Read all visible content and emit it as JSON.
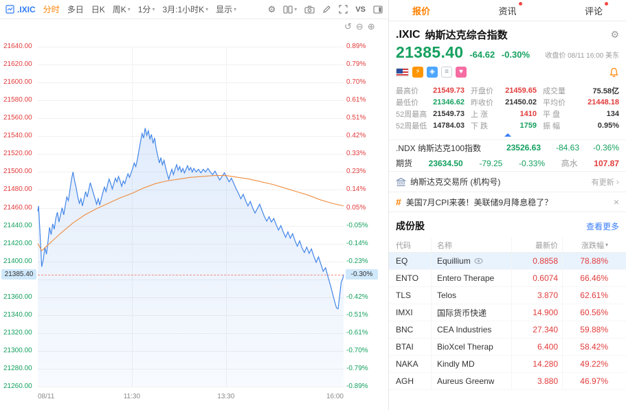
{
  "colors": {
    "up": "#e23b3b",
    "down": "#14a05e",
    "accent": "#ff8000",
    "link": "#3c7ff7",
    "line": "#4285e8",
    "avg_line": "#f08c3d"
  },
  "icons": {
    "caret": "▾",
    "gear": "⚙",
    "undo": "↺",
    "zoom_out": "⊖",
    "zoom_in": "⊕",
    "close": "×",
    "chevron_right": "›",
    "hash": "#",
    "heart": "♥",
    "lightning": "⚡",
    "tag": "◈",
    "list": "≡"
  },
  "toolbar": {
    "symbol_tab": ".IXIC",
    "items": [
      {
        "label": "分时",
        "active": true
      },
      {
        "label": "多日"
      },
      {
        "label": "日K"
      },
      {
        "label": "周K",
        "caret": true
      },
      {
        "label": "1分",
        "caret": true
      },
      {
        "label": "3月:1小时K",
        "caret": true
      },
      {
        "label": "显示",
        "caret": true
      }
    ],
    "vs_label": "VS"
  },
  "chart_data": {
    "type": "line",
    "symbol": ".IXIC",
    "title": "纳斯达克综合指数分时图",
    "session_date": "08/11",
    "prev_close": 21450.02,
    "current_price": 21385.4,
    "current_price_label": "21385.40",
    "current_percent_label": "-0.30%",
    "x_axis": {
      "minutes_total": 390,
      "labels": [
        {
          "label": "08/11",
          "t": 0,
          "align": "left"
        },
        {
          "label": "11:30",
          "t": 120,
          "align": "center"
        },
        {
          "label": "13:30",
          "t": 240,
          "align": "center"
        },
        {
          "label": "16:00",
          "t": 390,
          "align": "right"
        }
      ]
    },
    "vgrid_minutes": [
      120,
      240
    ],
    "ticks": [
      {
        "price": 21640,
        "left": "21640.00",
        "right": "0.89%",
        "dir": "up"
      },
      {
        "price": 21620,
        "left": "21620.00",
        "right": "0.79%",
        "dir": "up"
      },
      {
        "price": 21600,
        "left": "21600.00",
        "right": "0.70%",
        "dir": "up"
      },
      {
        "price": 21580,
        "left": "21580.00",
        "right": "0.61%",
        "dir": "up"
      },
      {
        "price": 21560,
        "left": "21560.00",
        "right": "0.51%",
        "dir": "up"
      },
      {
        "price": 21540,
        "left": "21540.00",
        "right": "0.42%",
        "dir": "up"
      },
      {
        "price": 21520,
        "left": "21520.00",
        "right": "0.33%",
        "dir": "up"
      },
      {
        "price": 21500,
        "left": "21500.00",
        "right": "0.23%",
        "dir": "up"
      },
      {
        "price": 21480,
        "left": "21480.00",
        "right": "0.14%",
        "dir": "up"
      },
      {
        "price": 21460,
        "left": "21460.00",
        "right": "0.05%",
        "dir": "up"
      },
      {
        "price": 21440,
        "left": "21440.00",
        "right": "-0.05%",
        "dir": "down"
      },
      {
        "price": 21420,
        "left": "21420.00",
        "right": "-0.14%",
        "dir": "down"
      },
      {
        "price": 21400,
        "left": "21400.00",
        "right": "-0.23%",
        "dir": "down"
      },
      {
        "price": 21380,
        "left": "",
        "right": "",
        "dir": "down"
      },
      {
        "price": 21360,
        "left": "21360.00",
        "right": "-0.42%",
        "dir": "down"
      },
      {
        "price": 21340,
        "left": "21340.00",
        "right": "-0.51%",
        "dir": "down"
      },
      {
        "price": 21320,
        "left": "21320.00",
        "right": "-0.61%",
        "dir": "down"
      },
      {
        "price": 21300,
        "left": "21300.00",
        "right": "-0.70%",
        "dir": "down"
      },
      {
        "price": 21280,
        "left": "21280.00",
        "right": "-0.79%",
        "dir": "down"
      },
      {
        "price": 21260,
        "left": "21260.00",
        "right": "-0.89%",
        "dir": "down"
      }
    ],
    "series": [
      {
        "name": "price",
        "color": "#4285e8",
        "points": [
          [
            0,
            21456
          ],
          [
            1,
            21462
          ],
          [
            2,
            21445
          ],
          [
            4,
            21412
          ],
          [
            5,
            21394
          ],
          [
            7,
            21402
          ],
          [
            9,
            21416
          ],
          [
            11,
            21408
          ],
          [
            13,
            21422
          ],
          [
            15,
            21438
          ],
          [
            17,
            21430
          ],
          [
            19,
            21442
          ],
          [
            21,
            21436
          ],
          [
            23,
            21448
          ],
          [
            25,
            21455
          ],
          [
            27,
            21444
          ],
          [
            29,
            21452
          ],
          [
            31,
            21460
          ],
          [
            33,
            21452
          ],
          [
            35,
            21462
          ],
          [
            37,
            21472
          ],
          [
            39,
            21468
          ],
          [
            41,
            21480
          ],
          [
            43,
            21492
          ],
          [
            45,
            21500
          ],
          [
            47,
            21490
          ],
          [
            49,
            21482
          ],
          [
            51,
            21472
          ],
          [
            53,
            21465
          ],
          [
            55,
            21470
          ],
          [
            57,
            21462
          ],
          [
            59,
            21470
          ],
          [
            61,
            21478
          ],
          [
            63,
            21472
          ],
          [
            65,
            21480
          ],
          [
            67,
            21488
          ],
          [
            69,
            21482
          ],
          [
            71,
            21476
          ],
          [
            73,
            21470
          ],
          [
            75,
            21464
          ],
          [
            77,
            21470
          ],
          [
            79,
            21463
          ],
          [
            81,
            21470
          ],
          [
            83,
            21477
          ],
          [
            85,
            21483
          ],
          [
            87,
            21478
          ],
          [
            89,
            21486
          ],
          [
            91,
            21492
          ],
          [
            93,
            21487
          ],
          [
            95,
            21481
          ],
          [
            97,
            21487
          ],
          [
            99,
            21493
          ],
          [
            101,
            21489
          ],
          [
            103,
            21495
          ],
          [
            105,
            21490
          ],
          [
            107,
            21484
          ],
          [
            109,
            21490
          ],
          [
            111,
            21487
          ],
          [
            113,
            21493
          ],
          [
            115,
            21498
          ],
          [
            117,
            21494
          ],
          [
            119,
            21499
          ],
          [
            121,
            21504
          ],
          [
            123,
            21510
          ],
          [
            125,
            21506
          ],
          [
            127,
            21514
          ],
          [
            129,
            21524
          ],
          [
            131,
            21534
          ],
          [
            133,
            21543
          ],
          [
            135,
            21538
          ],
          [
            137,
            21549
          ],
          [
            139,
            21541
          ],
          [
            141,
            21546
          ],
          [
            143,
            21537
          ],
          [
            145,
            21542
          ],
          [
            147,
            21532
          ],
          [
            149,
            21538
          ],
          [
            151,
            21526
          ],
          [
            153,
            21518
          ],
          [
            155,
            21510
          ],
          [
            157,
            21516
          ],
          [
            159,
            21508
          ],
          [
            161,
            21513
          ],
          [
            163,
            21505
          ],
          [
            165,
            21498
          ],
          [
            167,
            21492
          ],
          [
            169,
            21498
          ],
          [
            171,
            21503
          ],
          [
            173,
            21497
          ],
          [
            175,
            21503
          ],
          [
            177,
            21508
          ],
          [
            179,
            21502
          ],
          [
            181,
            21506
          ],
          [
            183,
            21500
          ],
          [
            185,
            21504
          ],
          [
            187,
            21499
          ],
          [
            189,
            21503
          ],
          [
            191,
            21507
          ],
          [
            193,
            21502
          ],
          [
            195,
            21505
          ],
          [
            197,
            21500
          ],
          [
            199,
            21504
          ],
          [
            202,
            21500
          ],
          [
            205,
            21503
          ],
          [
            208,
            21499
          ],
          [
            211,
            21503
          ],
          [
            214,
            21500
          ],
          [
            217,
            21504
          ],
          [
            220,
            21500
          ],
          [
            223,
            21497
          ],
          [
            226,
            21501
          ],
          [
            229,
            21496
          ],
          [
            232,
            21491
          ],
          [
            235,
            21495
          ],
          [
            238,
            21499
          ],
          [
            241,
            21494
          ],
          [
            244,
            21489
          ],
          [
            247,
            21493
          ],
          [
            250,
            21487
          ],
          [
            253,
            21481
          ],
          [
            256,
            21476
          ],
          [
            259,
            21470
          ],
          [
            262,
            21475
          ],
          [
            265,
            21468
          ],
          [
            268,
            21462
          ],
          [
            271,
            21467
          ],
          [
            274,
            21460
          ],
          [
            277,
            21454
          ],
          [
            280,
            21459
          ],
          [
            283,
            21464
          ],
          [
            286,
            21457
          ],
          [
            289,
            21450
          ],
          [
            292,
            21445
          ],
          [
            295,
            21450
          ],
          [
            298,
            21444
          ],
          [
            301,
            21448
          ],
          [
            304,
            21441
          ],
          [
            307,
            21435
          ],
          [
            310,
            21440
          ],
          [
            313,
            21433
          ],
          [
            316,
            21427
          ],
          [
            319,
            21433
          ],
          [
            322,
            21426
          ],
          [
            325,
            21431
          ],
          [
            328,
            21423
          ],
          [
            331,
            21417
          ],
          [
            334,
            21423
          ],
          [
            337,
            21415
          ],
          [
            340,
            21410
          ],
          [
            343,
            21416
          ],
          [
            346,
            21409
          ],
          [
            349,
            21414
          ],
          [
            352,
            21406
          ],
          [
            355,
            21399
          ],
          [
            358,
            21405
          ],
          [
            361,
            21397
          ],
          [
            364,
            21389
          ],
          [
            367,
            21393
          ],
          [
            370,
            21383
          ],
          [
            373,
            21374
          ],
          [
            376,
            21364
          ],
          [
            379,
            21354
          ],
          [
            381,
            21348
          ],
          [
            383,
            21347
          ],
          [
            385,
            21362
          ],
          [
            387,
            21377
          ],
          [
            389,
            21381
          ],
          [
            390,
            21385.4
          ]
        ]
      },
      {
        "name": "avg_price",
        "color": "#f08c3d",
        "points": [
          [
            0,
            21420
          ],
          [
            5,
            21412
          ],
          [
            10,
            21416
          ],
          [
            20,
            21424
          ],
          [
            30,
            21432
          ],
          [
            45,
            21443
          ],
          [
            60,
            21452
          ],
          [
            75,
            21459
          ],
          [
            90,
            21465
          ],
          [
            105,
            21471
          ],
          [
            120,
            21476
          ],
          [
            135,
            21482
          ],
          [
            150,
            21487
          ],
          [
            165,
            21490
          ],
          [
            180,
            21492
          ],
          [
            195,
            21494
          ],
          [
            210,
            21495
          ],
          [
            225,
            21496
          ],
          [
            240,
            21496
          ],
          [
            255,
            21494
          ],
          [
            270,
            21492
          ],
          [
            285,
            21489
          ],
          [
            300,
            21486
          ],
          [
            315,
            21482
          ],
          [
            330,
            21478
          ],
          [
            345,
            21474
          ],
          [
            360,
            21469
          ],
          [
            375,
            21465
          ],
          [
            390,
            21462
          ]
        ]
      }
    ]
  },
  "panel": {
    "tabs": [
      {
        "label": "报价",
        "active": true
      },
      {
        "label": "资讯",
        "dot": true
      },
      {
        "label": "评论",
        "dot": true
      }
    ],
    "quote": {
      "symbol": ".IXIC",
      "name": "纳斯达克综合指数",
      "price": "21385.40",
      "change": "-64.62",
      "change_percent": "-0.30%",
      "status": {
        "label": "收盘价",
        "time": "08/11 16:00",
        "tz": "美东"
      }
    },
    "stats": [
      {
        "label": "最高价",
        "value": "21549.73",
        "cls": "up"
      },
      {
        "label": "开盘价",
        "value": "21459.65",
        "cls": "up"
      },
      {
        "label": "成交量",
        "value": "75.58亿",
        "cls": ""
      },
      {
        "label": "最低价",
        "value": "21346.62",
        "cls": "down"
      },
      {
        "label": "昨收价",
        "value": "21450.02",
        "cls": ""
      },
      {
        "label": "平均价",
        "value": "21448.18",
        "cls": "up"
      },
      {
        "label": "52周最高",
        "value": "21549.73",
        "cls": ""
      },
      {
        "label": "上 涨",
        "value": "1410",
        "cls": "up"
      },
      {
        "label": "平 盘",
        "value": "134",
        "cls": ""
      },
      {
        "label": "52周最低",
        "value": "14784.03",
        "cls": ""
      },
      {
        "label": "下 跌",
        "value": "1759",
        "cls": "down"
      },
      {
        "label": "振 幅",
        "value": "0.95%",
        "cls": ""
      }
    ],
    "ndx": {
      "code": ".NDX",
      "name": "纳斯达克100指数",
      "price": "23526.63",
      "change": "-84.63",
      "pct": "-0.36%"
    },
    "futures": {
      "label": "期货",
      "price": "23634.50",
      "change": "-79.25",
      "pct": "-0.33%",
      "premium_label": "高水",
      "premium_value": "107.87"
    },
    "exchange": {
      "name": "纳斯达克交易所 (机构号)",
      "update_label": "有更新"
    },
    "announcement": {
      "text": "美国7月CPI来袭！美联储9月降息稳了？"
    },
    "components": {
      "title": "成份股",
      "more_label": "查看更多",
      "headers": {
        "code": "代码",
        "name": "名称",
        "price": "最新价",
        "pct": "涨跌幅"
      },
      "rows": [
        {
          "code": "EQ",
          "name": "Equillium",
          "price": "0.8858",
          "pct": "78.88%",
          "highlight": true,
          "eye": true
        },
        {
          "code": "ENTO",
          "name": "Entero Therape",
          "price": "0.6074",
          "pct": "66.46%"
        },
        {
          "code": "TLS",
          "name": "Telos",
          "price": "3.870",
          "pct": "62.61%"
        },
        {
          "code": "IMXI",
          "name": "国际货币快递",
          "price": "14.900",
          "pct": "60.56%"
        },
        {
          "code": "BNC",
          "name": "CEA Industries",
          "price": "27.340",
          "pct": "59.88%"
        },
        {
          "code": "BTAI",
          "name": "BioXcel Therap",
          "price": "6.400",
          "pct": "58.42%"
        },
        {
          "code": "NAKA",
          "name": "Kindly MD",
          "price": "14.280",
          "pct": "49.22%"
        },
        {
          "code": "AGH",
          "name": "Aureus Greenw",
          "price": "3.880",
          "pct": "46.97%"
        }
      ]
    }
  }
}
